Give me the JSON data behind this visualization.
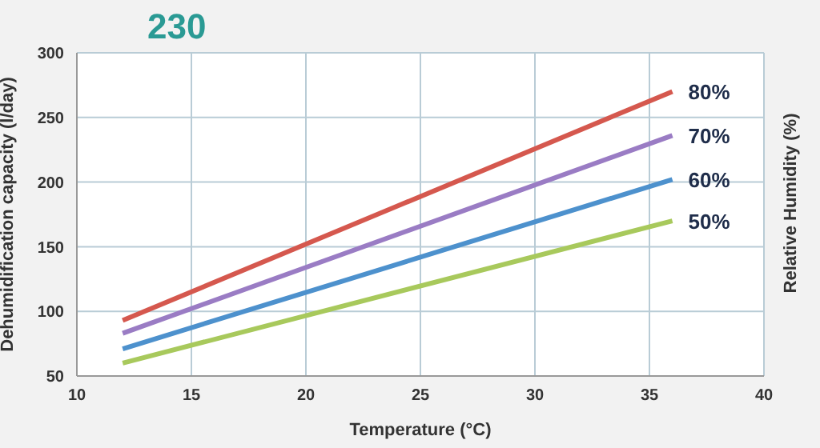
{
  "chart_data": {
    "type": "line",
    "title": "230",
    "xlabel": "Temperature (°C)",
    "ylabel": "Dehumidification capacity (l/day)",
    "legend_title": "Relative Humidity (%)",
    "x": [
      12,
      36
    ],
    "series": [
      {
        "name": "80%",
        "color": "#d5584e",
        "values": [
          93,
          270
        ]
      },
      {
        "name": "70%",
        "color": "#9a7cc4",
        "values": [
          83,
          236
        ]
      },
      {
        "name": "60%",
        "color": "#4d91cd",
        "values": [
          71,
          202
        ]
      },
      {
        "name": "50%",
        "color": "#a8c95c",
        "values": [
          60,
          170
        ]
      }
    ],
    "xlim": [
      10,
      40
    ],
    "xticks": [
      10,
      15,
      20,
      25,
      30,
      35,
      40
    ],
    "ylim": [
      50,
      300
    ],
    "yticks": [
      50,
      100,
      150,
      200,
      250,
      300
    ],
    "grid": true,
    "marker": "none",
    "line_style": "solid"
  }
}
